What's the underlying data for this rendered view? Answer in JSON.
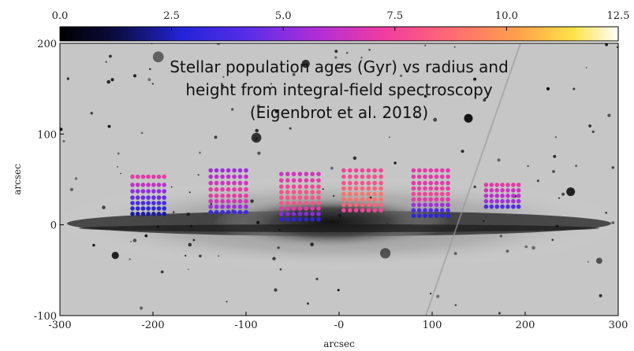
{
  "chart_data": {
    "type": "scatter",
    "title": [
      "Stellar population ages (Gyr) vs radius and",
      "height from integral-field spectroscopy",
      "(Eigenbrot et al. 2018)"
    ],
    "xlabel": "arcsec",
    "ylabel": "arcsec",
    "xlim": [
      -300,
      300
    ],
    "ylim": [
      -100,
      200
    ],
    "xticks": [
      -300,
      -200,
      -100,
      0,
      100,
      200,
      300
    ],
    "xtick_labels": [
      "-300",
      "-200",
      "-100",
      "-0",
      "100",
      "200",
      "300"
    ],
    "yticks": [
      -100,
      0,
      100,
      200
    ],
    "ytick_labels": [
      "-100",
      "0",
      "100",
      "200"
    ],
    "colorbar": {
      "range": [
        0.0,
        12.5
      ],
      "ticks": [
        0.0,
        2.5,
        5.0,
        7.5,
        10.0,
        12.5
      ],
      "tick_labels": [
        "0.0",
        "2.5",
        "5.0",
        "7.5",
        "10.0",
        "12.5"
      ],
      "colormap": "plasma-like (black-blue-purple-magenta-orange-yellow-white)"
    },
    "background": "grayscale galaxy image, edge-on disk along y = 0",
    "pointings": [
      {
        "x_range": [
          -222,
          -188
        ],
        "y_range": [
          10,
          53
        ],
        "rows": [
          {
            "y": 53,
            "age": 7.0
          },
          {
            "y": 44,
            "age": 6.2
          },
          {
            "y": 37,
            "age": 5.2
          },
          {
            "y": 30,
            "age": 4.5
          },
          {
            "y": 24,
            "age": 3.8
          },
          {
            "y": 18,
            "age": 3.0
          },
          {
            "y": 12,
            "age": 2.2
          }
        ]
      },
      {
        "x_range": [
          -138,
          -100
        ],
        "y_range": [
          10,
          60
        ],
        "rows": [
          {
            "y": 60,
            "age": 5.5
          },
          {
            "y": 53,
            "age": 6.0
          },
          {
            "y": 46,
            "age": 6.5
          },
          {
            "y": 39,
            "age": 7.0
          },
          {
            "y": 32,
            "age": 7.0
          },
          {
            "y": 26,
            "age": 6.5
          },
          {
            "y": 20,
            "age": 5.5
          },
          {
            "y": 14,
            "age": 3.5
          }
        ]
      },
      {
        "x_range": [
          -62,
          -22
        ],
        "y_range": [
          5,
          56
        ],
        "rows": [
          {
            "y": 56,
            "age": 6.5
          },
          {
            "y": 49,
            "age": 7.0
          },
          {
            "y": 42,
            "age": 7.5
          },
          {
            "y": 36,
            "age": 8.0
          },
          {
            "y": 30,
            "age": 8.0
          },
          {
            "y": 24,
            "age": 8.0
          },
          {
            "y": 18,
            "age": 7.0
          },
          {
            "y": 12,
            "age": 5.0
          },
          {
            "y": 6,
            "age": 3.0
          }
        ]
      },
      {
        "x_range": [
          5,
          45
        ],
        "y_range": [
          15,
          60
        ],
        "rows": [
          {
            "y": 60,
            "age": 7.5
          },
          {
            "y": 53,
            "age": 7.8
          },
          {
            "y": 46,
            "age": 8.0
          },
          {
            "y": 40,
            "age": 8.5
          },
          {
            "y": 34,
            "age": 9.0
          },
          {
            "y": 28,
            "age": 9.0
          },
          {
            "y": 22,
            "age": 8.5
          },
          {
            "y": 16,
            "age": 7.5
          }
        ]
      },
      {
        "x_range": [
          80,
          117
        ],
        "y_range": [
          8,
          60
        ],
        "rows": [
          {
            "y": 60,
            "age": 7.0
          },
          {
            "y": 53,
            "age": 7.0
          },
          {
            "y": 46,
            "age": 7.0
          },
          {
            "y": 40,
            "age": 7.2
          },
          {
            "y": 34,
            "age": 7.5
          },
          {
            "y": 28,
            "age": 7.0
          },
          {
            "y": 22,
            "age": 5.5
          },
          {
            "y": 16,
            "age": 4.0
          },
          {
            "y": 10,
            "age": 3.0
          }
        ]
      },
      {
        "x_range": [
          158,
          193
        ],
        "y_range": [
          18,
          44
        ],
        "rows": [
          {
            "y": 44,
            "age": 7.0
          },
          {
            "y": 38,
            "age": 6.5
          },
          {
            "y": 32,
            "age": 6.0
          },
          {
            "y": 26,
            "age": 5.5
          },
          {
            "y": 20,
            "age": 4.0
          }
        ]
      }
    ]
  }
}
